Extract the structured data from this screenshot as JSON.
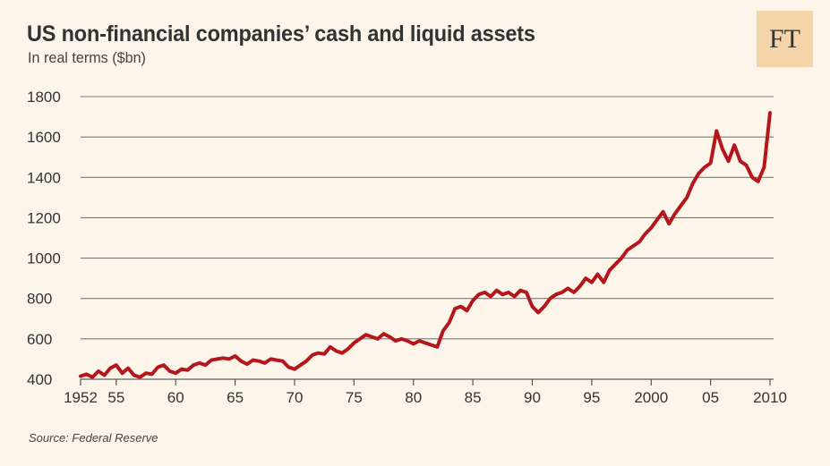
{
  "header": {
    "title": "US non-financial companies’ cash and liquid assets",
    "subtitle": "In real terms ($bn)",
    "logo_text": "FT"
  },
  "footer": {
    "source": "Source: Federal Reserve"
  },
  "colors": {
    "line": "#b3171c",
    "grid": "#7a7a7a",
    "background": "#fdf5ea",
    "logo_bg": "#f6d4aa"
  },
  "chart_data": {
    "type": "line",
    "title": "US non-financial companies’ cash and liquid assets",
    "subtitle": "In real terms ($bn)",
    "xlabel": "",
    "ylabel": "",
    "xlim": [
      1952,
      2010.3
    ],
    "ylim": [
      400,
      1800
    ],
    "y_ticks": [
      400,
      600,
      800,
      1000,
      1200,
      1400,
      1600,
      1800
    ],
    "x_ticks": [
      {
        "value": 1952,
        "label": "1952"
      },
      {
        "value": 1955,
        "label": "55"
      },
      {
        "value": 1960,
        "label": "60"
      },
      {
        "value": 1965,
        "label": "65"
      },
      {
        "value": 1970,
        "label": "70"
      },
      {
        "value": 1975,
        "label": "75"
      },
      {
        "value": 1980,
        "label": "80"
      },
      {
        "value": 1985,
        "label": "85"
      },
      {
        "value": 1990,
        "label": "90"
      },
      {
        "value": 1995,
        "label": "95"
      },
      {
        "value": 2000,
        "label": "2000"
      },
      {
        "value": 2005,
        "label": "05"
      },
      {
        "value": 2010,
        "label": "2010"
      }
    ],
    "grid": true,
    "series": [
      {
        "x": [
          1952,
          1952.5,
          1953,
          1953.5,
          1954,
          1954.5,
          1955,
          1955.5,
          1956,
          1956.5,
          1957,
          1957.5,
          1958,
          1958.5,
          1959,
          1959.5,
          1960,
          1960.5,
          1961,
          1961.5,
          1962,
          1962.5,
          1963,
          1963.5,
          1964,
          1964.5,
          1965,
          1965.5,
          1966,
          1966.5,
          1967,
          1967.5,
          1968,
          1968.5,
          1969,
          1969.5,
          1970,
          1970.5,
          1971,
          1971.5,
          1972,
          1972.5,
          1973,
          1973.5,
          1974,
          1974.5,
          1975,
          1975.5,
          1976,
          1976.5,
          1977,
          1977.5,
          1978,
          1978.5,
          1979,
          1979.5,
          1980,
          1980.5,
          1981,
          1981.5,
          1982,
          1982.5,
          1983,
          1983.5,
          1984,
          1984.5,
          1985,
          1985.5,
          1986,
          1986.5,
          1987,
          1987.5,
          1988,
          1988.5,
          1989,
          1989.5,
          1990,
          1990.5,
          1991,
          1991.5,
          1992,
          1992.5,
          1993,
          1993.5,
          1994,
          1994.5,
          1995,
          1995.5,
          1996,
          1996.5,
          1997,
          1997.5,
          1998,
          1998.5,
          1999,
          1999.5,
          2000,
          2000.5,
          2001,
          2001.5,
          2002,
          2002.5,
          2003,
          2003.5,
          2004,
          2004.5,
          2005,
          2005.5,
          2006,
          2006.5,
          2007,
          2007.5,
          2008,
          2008.5,
          2009,
          2009.5,
          2010
        ],
        "values": [
          415,
          425,
          410,
          440,
          420,
          455,
          470,
          430,
          455,
          420,
          410,
          430,
          425,
          460,
          470,
          440,
          430,
          450,
          445,
          470,
          480,
          470,
          495,
          500,
          505,
          500,
          515,
          490,
          475,
          495,
          490,
          480,
          500,
          495,
          490,
          460,
          450,
          470,
          490,
          520,
          530,
          525,
          560,
          540,
          530,
          550,
          580,
          600,
          620,
          610,
          600,
          625,
          610,
          590,
          600,
          590,
          575,
          590,
          580,
          570,
          560,
          640,
          680,
          750,
          760,
          740,
          790,
          820,
          830,
          810,
          840,
          820,
          830,
          810,
          840,
          830,
          760,
          730,
          760,
          800,
          820,
          830,
          850,
          830,
          860,
          900,
          880,
          920,
          880,
          940,
          970,
          1000,
          1040,
          1060,
          1080,
          1120,
          1150,
          1190,
          1230,
          1170,
          1220,
          1260,
          1300,
          1370,
          1420,
          1450,
          1470,
          1630,
          1540,
          1480,
          1560,
          1480,
          1460,
          1400,
          1380,
          1450,
          1720
        ]
      }
    ]
  }
}
